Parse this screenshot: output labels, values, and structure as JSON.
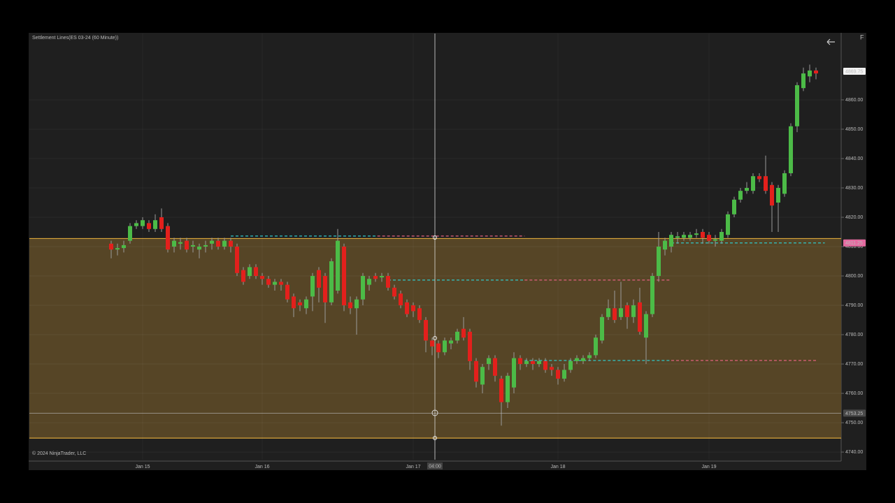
{
  "chart_data": {
    "type": "candlestick",
    "title": "Settlement Lines(ES 03-24 (60 Minute))",
    "copyright": "© 2024 NinjaTrader, LLC",
    "corner_label": "F",
    "crosshair_label": "04:00",
    "categories": [
      null,
      null,
      null,
      null,
      null,
      "Jan 15",
      null,
      null,
      null,
      null,
      null,
      null,
      null,
      null,
      null,
      null,
      null,
      null,
      null,
      null,
      null,
      null,
      null,
      null,
      "Jan 16",
      null,
      null,
      null,
      null,
      null,
      null,
      null,
      null,
      null,
      null,
      null,
      null,
      null,
      null,
      null,
      null,
      null,
      null,
      null,
      null,
      null,
      null,
      null,
      "Jan 17",
      null,
      null,
      null,
      null,
      null,
      null,
      null,
      null,
      null,
      null,
      null,
      null,
      null,
      null,
      null,
      null,
      null,
      null,
      null,
      null,
      null,
      null,
      "Jan 18",
      null,
      null,
      null,
      null,
      null,
      null,
      null,
      null,
      null,
      null,
      null,
      null,
      null,
      null,
      null,
      null,
      null,
      null,
      null,
      null,
      null,
      null,
      null,
      "Jan 19",
      null,
      null,
      null,
      null,
      null,
      null,
      null,
      null,
      null,
      null,
      null,
      null,
      null,
      null,
      null,
      null,
      null
    ],
    "open": [
      4811,
      4809,
      4809.5,
      4812,
      4817,
      4817,
      4818,
      4816,
      4820,
      4817,
      4810,
      4811,
      4812,
      4810,
      4809,
      4810,
      4811,
      4812,
      4810,
      4812,
      4810,
      4802,
      4800,
      4803,
      4800,
      4799,
      4797,
      4798,
      4797,
      4793,
      4791,
      4789,
      4793,
      4802,
      4800,
      4791,
      4795,
      4810,
      4791,
      4789,
      4792,
      4797,
      4800,
      4799.5,
      4800,
      4796,
      4794,
      4791,
      4790,
      4789,
      4785,
      4778,
      4777,
      4774,
      4777,
      4778,
      4782,
      4781,
      4771,
      4763,
      4770,
      4772,
      4765,
      4757,
      4762,
      4772,
      4770,
      4771,
      4770,
      4771,
      4769,
      4768,
      4765,
      4768,
      4771,
      4771,
      4772,
      4773,
      4778,
      4786,
      4789,
      4786,
      4790,
      4786,
      4791,
      4779,
      4787,
      4800,
      4809,
      4810,
      4813,
      4813,
      4813,
      4814,
      4815,
      4814,
      4812,
      4812,
      4814,
      4821,
      4826,
      4829,
      4829,
      4834,
      4834,
      4831,
      4825,
      4828,
      4835,
      4851,
      4864,
      4868,
      4870
    ],
    "high": [
      4812,
      4811,
      4812,
      4818,
      4819,
      4820,
      4819,
      4821,
      4823,
      4818,
      4813,
      4813,
      4813,
      4812,
      4811,
      4812,
      4813,
      4813,
      4813,
      4813,
      4811,
      4803,
      4804,
      4804,
      4801,
      4800,
      4799,
      4799,
      4798,
      4794,
      4792,
      4793,
      4801,
      4803,
      4801,
      4806,
      4816,
      4811,
      4793,
      4793,
      4801,
      4800,
      4801,
      4801,
      4801,
      4797,
      4795,
      4792,
      4791,
      4790,
      4786,
      4779,
      4778,
      4779,
      4779,
      4782,
      4786,
      4782,
      4772,
      4770,
      4773,
      4773,
      4766,
      4767,
      4774,
      4773,
      4772,
      4772,
      4772,
      4772,
      4770,
      4769,
      4770,
      4772,
      4773,
      4773,
      4774,
      4780,
      4787,
      4792,
      4795,
      4798,
      4791,
      4792,
      4796,
      4788,
      4801,
      4815,
      4813,
      4815,
      4815,
      4815,
      4815,
      4816,
      4816,
      4815,
      4814,
      4816,
      4822,
      4827,
      4830,
      4832,
      4835,
      4835,
      4841,
      4832,
      4831,
      4836,
      4852,
      4866,
      4871,
      4872,
      4871
    ],
    "low": [
      4806,
      4807,
      4808,
      4811,
      4816,
      4816,
      4815,
      4815,
      4815,
      4808,
      4808,
      4809,
      4808,
      4808,
      4806,
      4808,
      4809,
      4809,
      4809,
      4808,
      4800,
      4797,
      4799,
      4799,
      4797,
      4796,
      4795,
      4795,
      4791,
      4786,
      4788,
      4787,
      4788,
      4791,
      4784,
      4790,
      4794,
      4788,
      4787,
      4780,
      4790,
      4795,
      4798,
      4798,
      4795,
      4792,
      4789,
      4786,
      4786,
      4784,
      4774,
      4773,
      4772,
      4773,
      4775,
      4777,
      4778,
      4768,
      4762,
      4760,
      4768,
      4764,
      4749,
      4755,
      4760,
      4768,
      4769,
      4768,
      4769,
      4767,
      4766,
      4763,
      4764,
      4767,
      4770,
      4770,
      4771,
      4772,
      4777,
      4785,
      4784,
      4785,
      4782,
      4784,
      4780,
      4770,
      4786,
      4798,
      4807,
      4808,
      4811,
      4812,
      4812,
      4813,
      4811,
      4811,
      4810,
      4811,
      4813,
      4820,
      4825,
      4828,
      4828,
      4832,
      4828,
      4815,
      4815,
      4827,
      4834,
      4849,
      4863,
      4866,
      4867
    ],
    "close": [
      4809,
      4809.5,
      4810.5,
      4817,
      4818,
      4819,
      4816,
      4819,
      4816,
      4809,
      4812,
      4811.5,
      4809,
      4810.5,
      4810,
      4810.5,
      4812,
      4810,
      4812,
      4810,
      4801,
      4798,
      4803,
      4800,
      4799,
      4797,
      4798,
      4797,
      4792,
      4789,
      4790,
      4792,
      4800,
      4796,
      4791,
      4805,
      4812,
      4790,
      4789,
      4792,
      4800,
      4799,
      4799,
      4800,
      4796,
      4793,
      4790,
      4787,
      4788,
      4785,
      4778,
      4776,
      4774,
      4778,
      4778,
      4781,
      4779,
      4771,
      4764,
      4769,
      4772,
      4766,
      4757,
      4766,
      4772,
      4770,
      4771,
      4770,
      4771,
      4768,
      4768,
      4765,
      4768,
      4771,
      4772,
      4772,
      4773,
      4779,
      4786,
      4789,
      4785,
      4789,
      4786,
      4790,
      4781,
      4787,
      4800,
      4810,
      4812,
      4814,
      4813.5,
      4814,
      4814,
      4814.5,
      4813,
      4812,
      4812.5,
      4815,
      4821,
      4826,
      4829,
      4830,
      4834,
      4833,
      4829,
      4824,
      4830,
      4835,
      4851,
      4865,
      4869,
      4870,
      4869
    ],
    "up_color": "#4cbb47",
    "down_color": "#e3201c",
    "wick_color": "#9a9a9a",
    "ylim": [
      4737.4,
      4882.6
    ],
    "yticks": [
      {
        "value": 4740,
        "label": "4740.00"
      },
      {
        "value": 4750,
        "label": "4750.00"
      },
      {
        "value": 4760,
        "label": "4760.00"
      },
      {
        "value": 4770,
        "label": "4770.00"
      },
      {
        "value": 4780,
        "label": "4780.00"
      },
      {
        "value": 4790,
        "label": "4790.00"
      },
      {
        "value": 4800,
        "label": "4800.00"
      },
      {
        "value": 4810,
        "label": "4810.00"
      },
      {
        "value": 4820,
        "label": "4820.00"
      },
      {
        "value": 4830,
        "label": "4830.00"
      },
      {
        "value": 4840,
        "label": "4840.00"
      },
      {
        "value": 4850,
        "label": "4850.00"
      },
      {
        "value": 4860,
        "label": "4860.00"
      }
    ],
    "zone": {
      "from": 4744.75,
      "to": 4812.75,
      "color": "#564526",
      "line_color": "#d9a53a"
    },
    "settlement_lines": [
      {
        "value": 4813.6,
        "start": 19,
        "switch": 42.3,
        "end": 65.7
      },
      {
        "value": 4798.6,
        "start": 44,
        "switch": 65.7,
        "end": 89
      },
      {
        "value": 4771.2,
        "start": 65.7,
        "switch": 89,
        "end": 112.3
      },
      {
        "value": 4811.25,
        "start": 89,
        "switch": 113.4,
        "end": 113.4
      }
    ],
    "settlement_colors": [
      "#31c6c6",
      "#e0607e"
    ],
    "price_markers": [
      {
        "value": 4869.75,
        "label": "4869.75",
        "color": "#f2f2f2"
      },
      {
        "value": 4811.25,
        "label": "4811.25",
        "color": "#e56aa0"
      },
      {
        "value": 4753.25,
        "label": "4753.25",
        "color": "#4a4a4a"
      }
    ]
  }
}
